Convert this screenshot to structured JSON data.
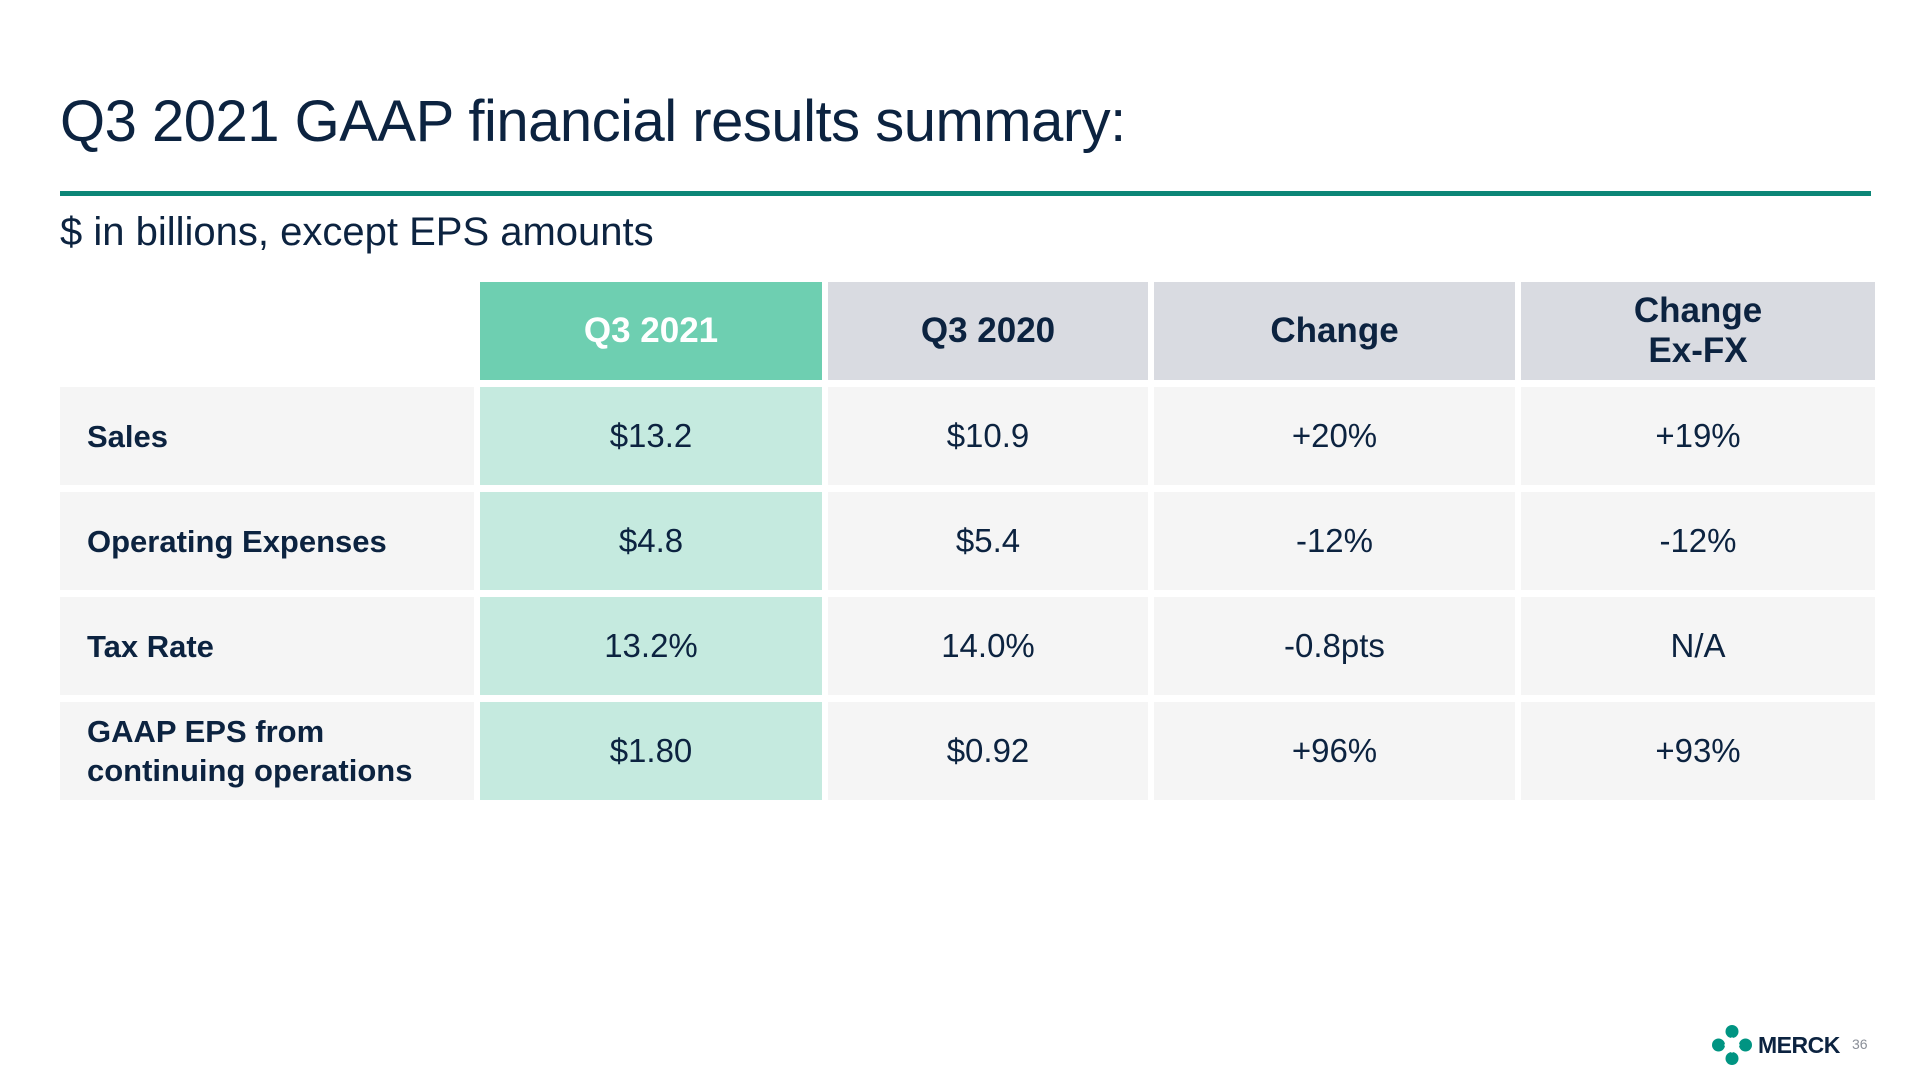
{
  "slide": {
    "title": "Q3 2021 GAAP financial results summary:",
    "subtitle": "$ in billions, except EPS amounts",
    "page_number": "36",
    "logo_text": "MERCK"
  },
  "table": {
    "headers": [
      "",
      "Q3 2021",
      "Q3 2020",
      "Change",
      "Change\nEx-FX"
    ],
    "rows": [
      {
        "label": "Sales",
        "values": [
          "$13.2",
          "$10.9",
          "+20%",
          "+19%"
        ]
      },
      {
        "label": "Operating Expenses",
        "values": [
          "$4.8",
          "$5.4",
          "-12%",
          "-12%"
        ]
      },
      {
        "label": "Tax Rate",
        "values": [
          "13.2%",
          "14.0%",
          "-0.8pts",
          "N/A"
        ]
      },
      {
        "label": "GAAP EPS from\ncontinuing operations",
        "values": [
          "$1.80",
          "$0.92",
          "+96%",
          "+93%"
        ]
      }
    ]
  },
  "colors": {
    "title_text": "#0c2340",
    "rule": "#0c8677",
    "header_accent": "#6ecfb1",
    "header_gray": "#d9dbe1",
    "cell_accent": "#c5eadf",
    "cell_gray": "#f5f5f5",
    "logo_teal": "#009482"
  },
  "icons": {
    "logo": "merck-logo-icon"
  }
}
